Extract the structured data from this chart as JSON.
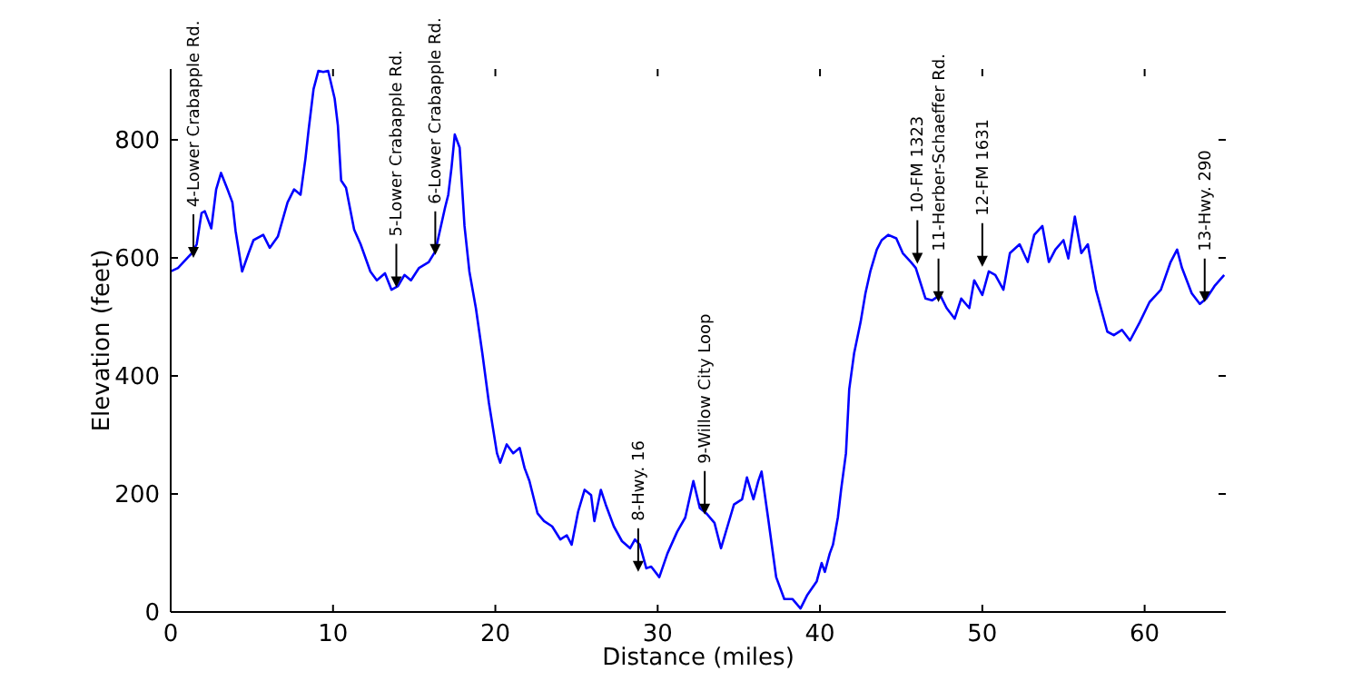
{
  "chart_data": {
    "type": "line",
    "xlabel": "Distance (miles)",
    "ylabel": "Elevation (feet)",
    "xlim": [
      0,
      65
    ],
    "ylim": [
      0,
      920
    ],
    "xticks": [
      0,
      10,
      20,
      30,
      40,
      50,
      60
    ],
    "yticks": [
      0,
      200,
      400,
      600,
      800
    ],
    "grid": false,
    "marker": "none",
    "line_style": "solid",
    "series": [
      {
        "color": "#0000ff",
        "x": [
          0,
          0.45,
          1.1,
          1.3,
          1.6,
          1.9,
          2.1,
          2.5,
          2.8,
          3.1,
          3.5,
          3.8,
          4.0,
          4.4,
          4.8,
          5.1,
          5.7,
          6.1,
          6.6,
          7.2,
          7.6,
          8.0,
          8.3,
          8.5,
          8.8,
          9.1,
          9.4,
          9.7,
          10.1,
          10.3,
          10.5,
          10.8,
          11.3,
          11.7,
          12.3,
          12.7,
          13.2,
          13.6,
          14.0,
          14.4,
          14.8,
          15.3,
          15.9,
          16.3,
          16.9,
          17.1,
          17.3,
          17.5,
          17.8,
          18.1,
          18.4,
          18.8,
          19.2,
          19.6,
          20.1,
          20.3,
          20.7,
          21.1,
          21.5,
          21.8,
          22.1,
          22.6,
          23.0,
          23.5,
          24.0,
          24.4,
          24.7,
          25.1,
          25.5,
          25.9,
          26.1,
          26.5,
          26.8,
          27.3,
          27.8,
          28.3,
          28.6,
          28.9,
          29.3,
          29.6,
          30.1,
          30.6,
          31.2,
          31.7,
          32.2,
          32.6,
          33.0,
          33.5,
          33.9,
          34.3,
          34.7,
          35.2,
          35.5,
          35.9,
          36.2,
          36.4,
          36.8,
          37.3,
          37.8,
          38.3,
          38.8,
          39.2,
          39.8,
          40.1,
          40.3,
          40.6,
          40.8,
          41.1,
          41.3,
          41.6,
          41.8,
          42.1,
          42.5,
          42.8,
          43.1,
          43.5,
          43.8,
          44.2,
          44.7,
          45.1,
          45.6,
          45.9,
          46.5,
          46.9,
          47.4,
          47.8,
          48.3,
          48.7,
          49.2,
          49.5,
          50.0,
          50.4,
          50.8,
          51.3,
          51.7,
          52.3,
          52.8,
          53.2,
          53.7,
          54.1,
          54.5,
          55.0,
          55.3,
          55.7,
          56.1,
          56.5,
          57.0,
          57.7,
          58.1,
          58.6,
          59.1,
          59.7,
          60.3,
          61.0,
          61.6,
          62.0,
          62.3,
          62.9,
          63.4,
          63.8,
          64.3,
          64.9
        ],
        "values": [
          577,
          583,
          602,
          608,
          623,
          676,
          679,
          650,
          716,
          744,
          716,
          694,
          645,
          577,
          608,
          630,
          639,
          617,
          636,
          694,
          716,
          707,
          768,
          818,
          886,
          917,
          915,
          917,
          870,
          824,
          731,
          719,
          648,
          623,
          577,
          562,
          574,
          546,
          552,
          571,
          562,
          583,
          593,
          611,
          685,
          707,
          753,
          809,
          787,
          654,
          577,
          515,
          438,
          355,
          269,
          253,
          284,
          269,
          278,
          244,
          222,
          167,
          154,
          145,
          123,
          130,
          114,
          170,
          207,
          198,
          154,
          207,
          182,
          145,
          120,
          108,
          123,
          114,
          74,
          77,
          59,
          99,
          136,
          160,
          222,
          176,
          167,
          151,
          108,
          145,
          182,
          191,
          228,
          191,
          222,
          238,
          160,
          59,
          22,
          22,
          6,
          28,
          52,
          83,
          68,
          99,
          114,
          160,
          207,
          269,
          377,
          438,
          491,
          540,
          577,
          614,
          630,
          639,
          633,
          608,
          593,
          583,
          531,
          528,
          537,
          515,
          497,
          531,
          515,
          562,
          537,
          577,
          571,
          546,
          608,
          623,
          593,
          639,
          654,
          593,
          614,
          630,
          599,
          670,
          608,
          623,
          546,
          475,
          469,
          478,
          460,
          491,
          525,
          546,
          593,
          614,
          583,
          540,
          522,
          531,
          552,
          571
        ]
      }
    ],
    "annotations": [
      {
        "text": "4-Lower Crabapple Rd.",
        "x": 1.4,
        "y": 600
      },
      {
        "text": "5-Lower Crabapple Rd.",
        "x": 13.9,
        "y": 550
      },
      {
        "text": "6-Lower Crabapple Rd.",
        "x": 16.3,
        "y": 605
      },
      {
        "text": "8-Hwy. 16",
        "x": 28.8,
        "y": 68
      },
      {
        "text": "9-Willow City Loop",
        "x": 32.9,
        "y": 165
      },
      {
        "text": "10-FM 1323",
        "x": 46.0,
        "y": 590
      },
      {
        "text": "11-Herber-Schaeffer Rd.",
        "x": 47.3,
        "y": 525
      },
      {
        "text": "12-FM 1631",
        "x": 50.0,
        "y": 585
      },
      {
        "text": "13-Hwy. 290",
        "x": 63.7,
        "y": 525
      }
    ]
  }
}
